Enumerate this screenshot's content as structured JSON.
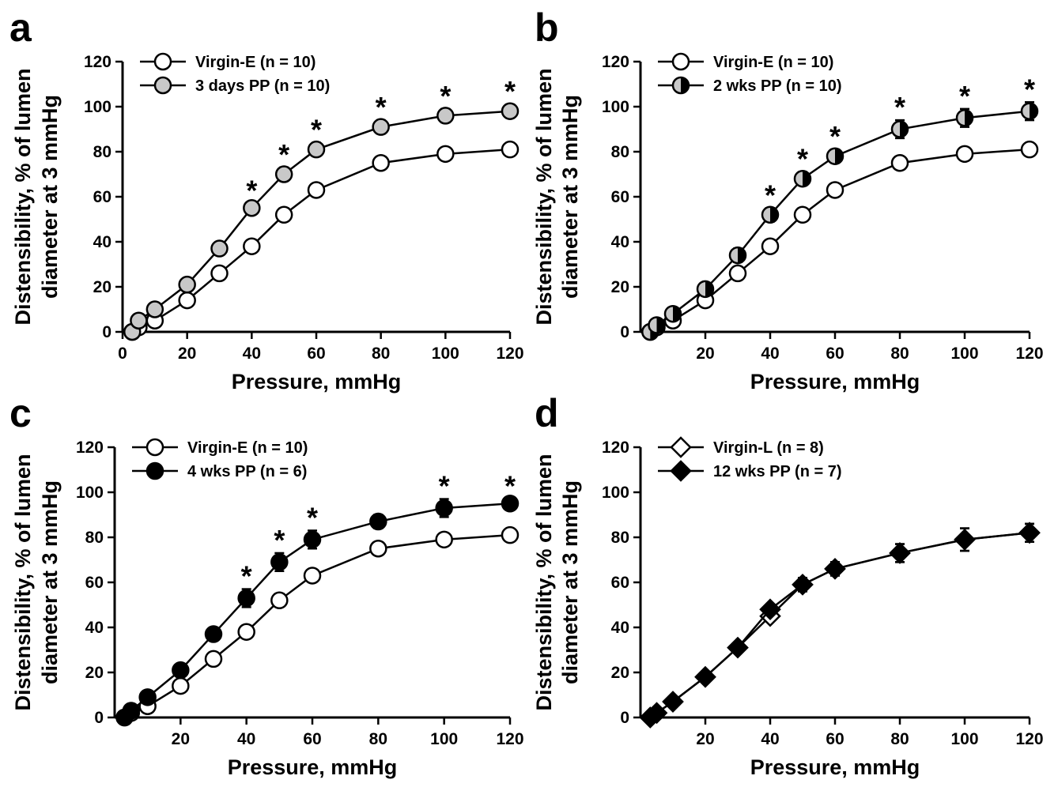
{
  "chart_data": [
    {
      "type": "line",
      "panel_label": "a",
      "xlabel": "Pressure, mmHg",
      "ylabel": [
        "Distensibility, % of lumen",
        "diameter at 3 mmHg"
      ],
      "xlim": [
        0,
        120
      ],
      "ylim": [
        0,
        120
      ],
      "xticks": [
        0,
        20,
        40,
        60,
        80,
        100,
        120
      ],
      "yticks": [
        0,
        20,
        40,
        60,
        80,
        100,
        120
      ],
      "legend_position": "top-left",
      "grid": false,
      "significance_marker": "*",
      "series": [
        {
          "name": "Virgin-E (n = 10)",
          "marker": "circle",
          "fill": "#ffffff",
          "x": [
            3,
            5,
            10,
            20,
            30,
            40,
            50,
            60,
            80,
            100,
            120
          ],
          "y": [
            0,
            2,
            5,
            14,
            26,
            38,
            52,
            63,
            75,
            79,
            81
          ],
          "err": [
            0,
            0,
            1,
            1,
            1,
            1,
            1,
            1,
            1,
            1,
            1
          ]
        },
        {
          "name": "3 days PP (n = 10)",
          "marker": "circle",
          "fill": "#c8c8c8",
          "x": [
            3,
            5,
            10,
            20,
            30,
            40,
            50,
            60,
            80,
            100,
            120
          ],
          "y": [
            0,
            5,
            10,
            21,
            37,
            55,
            70,
            81,
            91,
            96,
            98
          ],
          "err": [
            0,
            1,
            1,
            1,
            2,
            2,
            3,
            3,
            3,
            3,
            3
          ],
          "significant_x": [
            40,
            50,
            60,
            80,
            100,
            120
          ]
        }
      ]
    },
    {
      "type": "line",
      "panel_label": "b",
      "xlabel": "Pressure, mmHg",
      "ylabel": [
        "Distensibility, % of lumen",
        "diameter at 3 mmHg"
      ],
      "xlim": [
        0,
        120
      ],
      "ylim": [
        0,
        120
      ],
      "xticks": [
        20,
        40,
        60,
        80,
        100,
        120
      ],
      "yticks": [
        0,
        20,
        40,
        60,
        80,
        100,
        120
      ],
      "legend_position": "top-left",
      "grid": false,
      "significance_marker": "*",
      "series": [
        {
          "name": "Virgin-E (n = 10)",
          "marker": "circle",
          "fill": "#ffffff",
          "x": [
            3,
            5,
            10,
            20,
            30,
            40,
            50,
            60,
            80,
            100,
            120
          ],
          "y": [
            0,
            2,
            5,
            14,
            26,
            38,
            52,
            63,
            75,
            79,
            81
          ],
          "err": [
            0,
            0,
            1,
            1,
            1,
            1,
            1,
            1,
            1,
            1,
            1
          ]
        },
        {
          "name": "2 wks PP (n = 10)",
          "marker": "half-circle",
          "fill": "#c8c8c8",
          "x": [
            3,
            5,
            10,
            20,
            30,
            40,
            50,
            60,
            80,
            100,
            120
          ],
          "y": [
            0,
            3,
            8,
            19,
            34,
            52,
            68,
            78,
            90,
            95,
            98
          ],
          "err": [
            0,
            1,
            1,
            2,
            3,
            3,
            3,
            3,
            4,
            4,
            4
          ],
          "significant_x": [
            40,
            50,
            60,
            80,
            100,
            120
          ]
        }
      ]
    },
    {
      "type": "line",
      "panel_label": "c",
      "xlabel": "Pressure, mmHg",
      "ylabel": [
        "Distensibility, % of lumen",
        "diameter at 3 mmHg"
      ],
      "xlim": [
        0,
        120
      ],
      "ylim": [
        0,
        120
      ],
      "xticks": [
        20,
        40,
        60,
        80,
        100,
        120
      ],
      "yticks": [
        0,
        20,
        40,
        60,
        80,
        100,
        120
      ],
      "legend_position": "top-left",
      "grid": false,
      "significance_marker": "*",
      "series": [
        {
          "name": "Virgin-E (n = 10)",
          "marker": "circle",
          "fill": "#ffffff",
          "x": [
            3,
            5,
            10,
            20,
            30,
            40,
            50,
            60,
            80,
            100,
            120
          ],
          "y": [
            0,
            2,
            5,
            14,
            26,
            38,
            52,
            63,
            75,
            79,
            81
          ],
          "err": [
            0,
            0,
            1,
            1,
            1,
            1,
            1,
            1,
            1,
            1,
            1
          ]
        },
        {
          "name": "4 wks PP (n = 6)",
          "marker": "circle",
          "fill": "#000000",
          "x": [
            3,
            5,
            10,
            20,
            30,
            40,
            50,
            60,
            80,
            100,
            120
          ],
          "y": [
            0,
            3,
            9,
            21,
            37,
            53,
            69,
            79,
            87,
            93,
            95
          ],
          "err": [
            0,
            1,
            1,
            1,
            2,
            4,
            4,
            4,
            3,
            4,
            2
          ],
          "significant_x": [
            40,
            50,
            60,
            100,
            120
          ]
        }
      ]
    },
    {
      "type": "line",
      "panel_label": "d",
      "xlabel": "Pressure, mmHg",
      "ylabel": [
        "Distensibility, % of lumen",
        "diameter at 3 mmHg"
      ],
      "xlim": [
        0,
        120
      ],
      "ylim": [
        0,
        120
      ],
      "xticks": [
        20,
        40,
        60,
        80,
        100,
        120
      ],
      "yticks": [
        0,
        20,
        40,
        60,
        80,
        100,
        120
      ],
      "legend_position": "top-left",
      "grid": false,
      "significance_marker": "*",
      "series": [
        {
          "name": "Virgin-L (n = 8)",
          "marker": "diamond",
          "fill": "#ffffff",
          "x": [
            3,
            5,
            10,
            20,
            30,
            40,
            50,
            60,
            80,
            100,
            120
          ],
          "y": [
            0,
            2,
            7,
            18,
            31,
            45,
            59,
            66,
            73,
            79,
            82
          ],
          "err": [
            0,
            0,
            1,
            1,
            2,
            2,
            3,
            3,
            4,
            5,
            4
          ]
        },
        {
          "name": "12 wks PP (n = 7)",
          "marker": "diamond",
          "fill": "#000000",
          "x": [
            3,
            5,
            10,
            20,
            30,
            40,
            50,
            60,
            80,
            100,
            120
          ],
          "y": [
            0,
            2,
            7,
            18,
            31,
            48,
            59,
            66,
            73,
            79,
            82
          ],
          "err": [
            0,
            0,
            1,
            1,
            2,
            2,
            3,
            3,
            4,
            5,
            4
          ],
          "significant_x": []
        }
      ]
    }
  ]
}
